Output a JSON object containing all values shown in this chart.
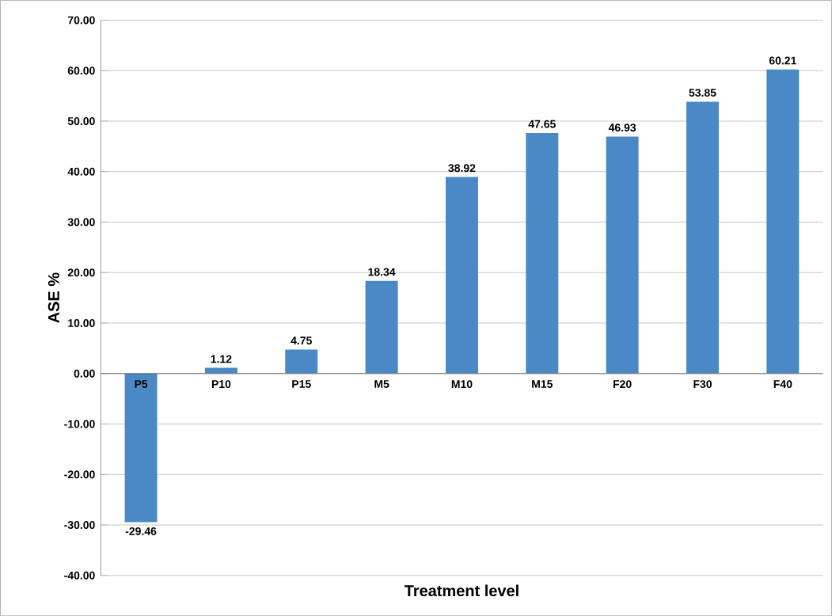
{
  "chart_data": {
    "type": "bar",
    "xlabel": "Treatment level",
    "ylabel": "ASE %",
    "categories": [
      "P5",
      "P10",
      "P15",
      "M5",
      "M10",
      "M15",
      "F20",
      "F30",
      "F40"
    ],
    "values": [
      -29.46,
      1.12,
      4.75,
      18.34,
      38.92,
      47.65,
      46.93,
      53.85,
      60.21
    ],
    "color": "#4a89c5",
    "data_labels": true,
    "grid": "y",
    "ylim": [
      -40,
      70
    ],
    "yticks": [
      {
        "value": -40,
        "label": "-40.00"
      },
      {
        "value": -30,
        "label": "-30.00"
      },
      {
        "value": -20,
        "label": "-20.00"
      },
      {
        "value": -10,
        "label": "-10.00"
      },
      {
        "value": 0,
        "label": "0.00"
      },
      {
        "value": 10,
        "label": "10.00"
      },
      {
        "value": 20,
        "label": "20.00"
      },
      {
        "value": 30,
        "label": "30.00"
      },
      {
        "value": 40,
        "label": "40.00"
      },
      {
        "value": 50,
        "label": "50.00"
      },
      {
        "value": 60,
        "label": "60.00"
      },
      {
        "value": 70,
        "label": "70.00"
      }
    ]
  }
}
